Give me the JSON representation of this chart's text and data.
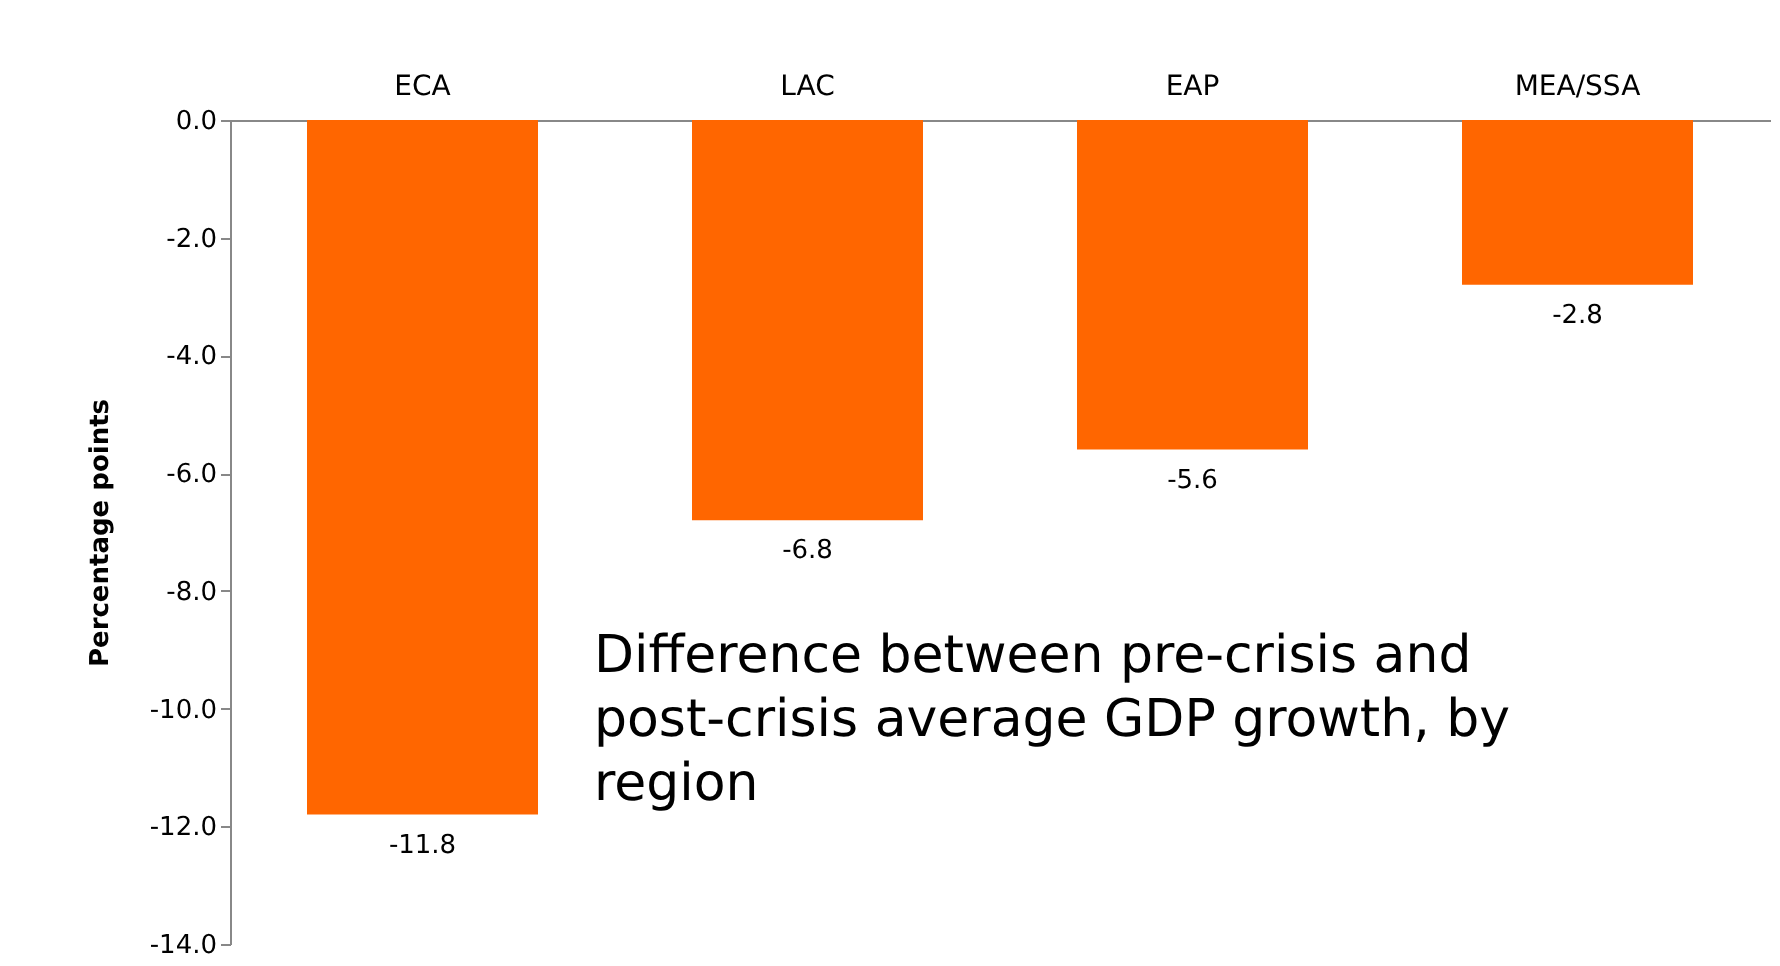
{
  "chart_data": {
    "type": "bar",
    "categories": [
      "ECA",
      "LAC",
      "EAP",
      "MEA/SSA"
    ],
    "values": [
      -11.8,
      -6.8,
      -5.6,
      -2.8
    ],
    "color": "#ff6600",
    "ylabel": "Percentage points",
    "ylim": [
      -14,
      0
    ],
    "yticks": [
      {
        "value": 0,
        "label": "0.0"
      },
      {
        "value": -2,
        "label": "-2.0"
      },
      {
        "value": -4,
        "label": "-4.0"
      },
      {
        "value": -6,
        "label": "-6.0"
      },
      {
        "value": -8,
        "label": "-8.0"
      },
      {
        "value": -10,
        "label": "-10.0"
      },
      {
        "value": -12,
        "label": "-12.0"
      },
      {
        "value": -14,
        "label": "-14.0"
      }
    ],
    "data_labels": true,
    "grid": false,
    "annotations": [
      "Difference between pre-crisis and post-crisis average GDP growth, by region"
    ]
  }
}
